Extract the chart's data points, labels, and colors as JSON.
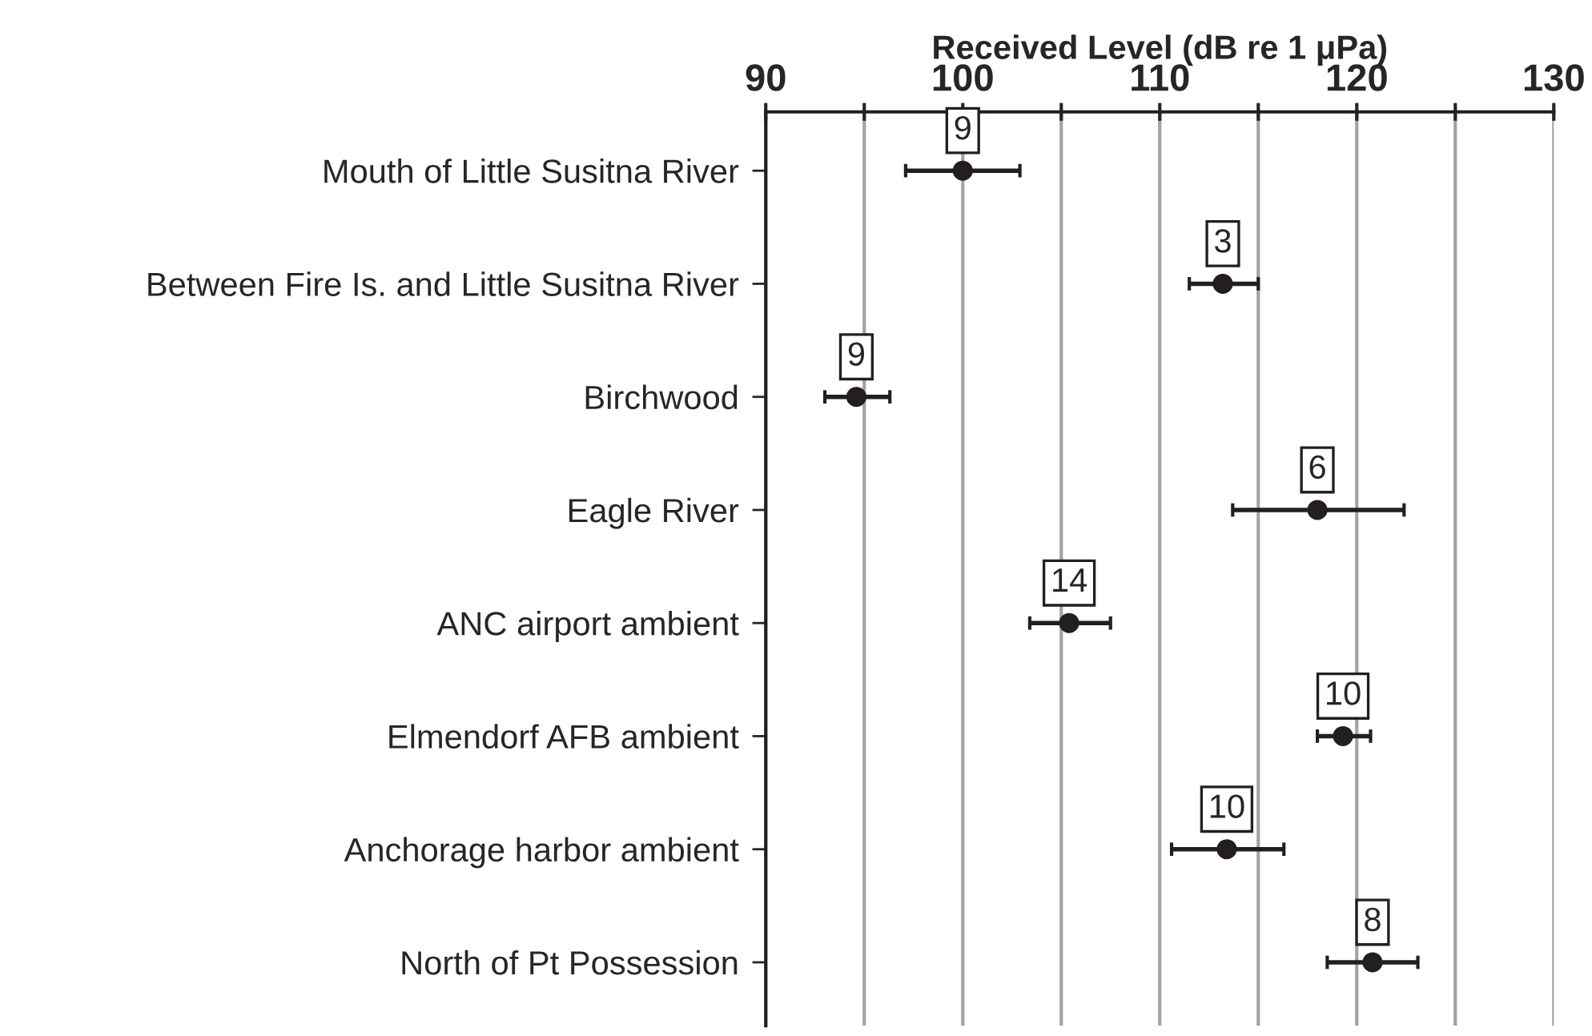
{
  "chart_data": {
    "type": "scatter",
    "orientation": "horizontal",
    "xlabel": "Received Level (dB re 1 μPa)",
    "categories": [
      "Mouth of Little Susitna River",
      "Between Fire Is. and Little Susitna River",
      "Birchwood",
      "Eagle River",
      "ANC airport ambient",
      "Elmendorf AFB ambient",
      "Anchorage harbor ambient",
      "North of Pt Possession"
    ],
    "values": [
      100.0,
      113.2,
      94.6,
      118.0,
      105.4,
      119.3,
      113.4,
      120.8
    ],
    "errors": [
      [
        97.1,
        102.9
      ],
      [
        111.5,
        115.0
      ],
      [
        93.0,
        96.3
      ],
      [
        113.7,
        122.4
      ],
      [
        103.4,
        107.5
      ],
      [
        118.0,
        120.7
      ],
      [
        110.6,
        116.3
      ],
      [
        118.5,
        123.1
      ]
    ],
    "color": "#231f20",
    "marker": "circle",
    "xlim": [
      90,
      130
    ],
    "xticks": [
      90,
      {
        "value": 95,
        "label": null
      },
      100,
      {
        "value": 105,
        "label": null
      },
      110,
      {
        "value": 115,
        "label": null
      },
      120,
      {
        "value": 125,
        "label": null
      },
      130
    ],
    "grid": "x",
    "annotations": [
      {
        "text": "9",
        "x": 100.0,
        "y": "Mouth of Little Susitna River"
      },
      {
        "text": "3",
        "x": 113.2,
        "y": "Between Fire Is. and Little Susitna River"
      },
      {
        "text": "9",
        "x": 94.6,
        "y": "Birchwood"
      },
      {
        "text": "6",
        "x": 118.0,
        "y": "Eagle River"
      },
      {
        "text": "14",
        "x": 105.4,
        "y": "ANC airport ambient"
      },
      {
        "text": "10",
        "x": 119.3,
        "y": "Elmendorf AFB ambient"
      },
      {
        "text": "10",
        "x": 113.4,
        "y": "Anchorage harbor ambient"
      },
      {
        "text": "8",
        "x": 120.8,
        "y": "North of Pt Possession"
      }
    ]
  }
}
